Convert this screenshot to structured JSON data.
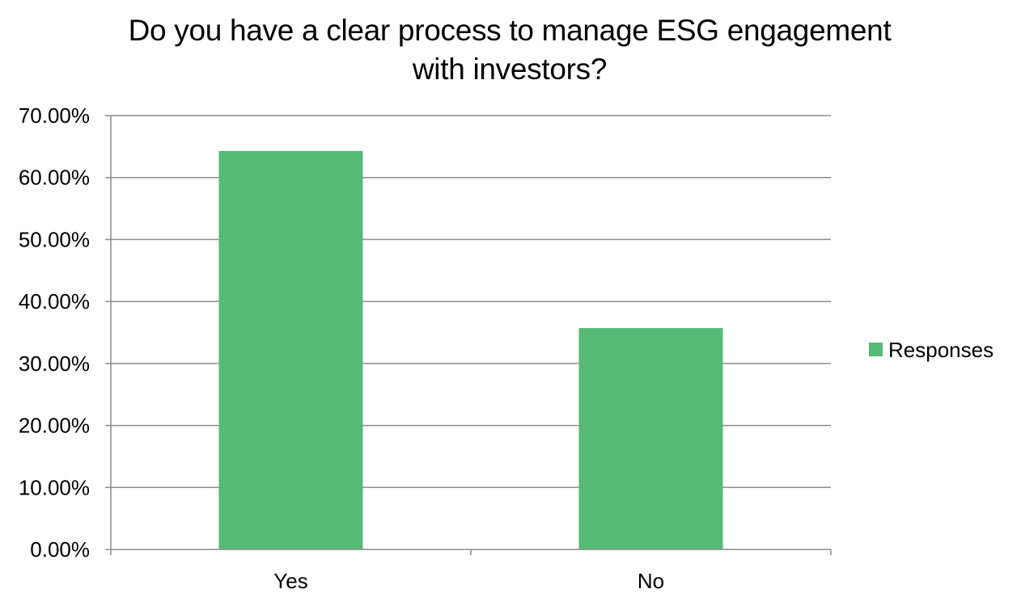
{
  "chart_data": {
    "type": "bar",
    "title_lines": [
      "Do you have a clear process to manage ESG engagement",
      "with investors?"
    ],
    "categories": [
      "Yes",
      "No"
    ],
    "series": [
      {
        "name": "Responses",
        "values": [
          64.29,
          35.71
        ],
        "color": "#56bb76"
      }
    ],
    "ylim": [
      0,
      70
    ],
    "ytick_step": 10,
    "ytick_format": "percent_2dp",
    "grid": true,
    "gridline_color": "#8c8c8c",
    "legend_position": "right"
  }
}
